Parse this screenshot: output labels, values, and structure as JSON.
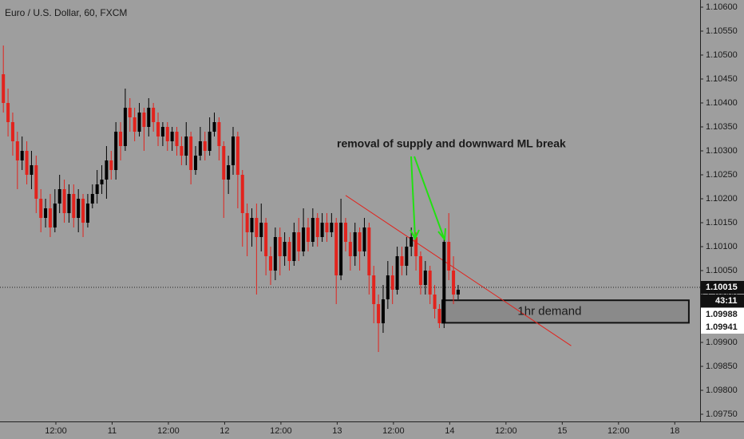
{
  "chart_data": {
    "type": "candlestick",
    "title": "Euro / U.S. Dollar, 60, FXCM",
    "annotation": "removal of supply and downward ML break",
    "up_color": "#000000",
    "down_color": "#e2231d",
    "xlim": [
      -0.715,
      148.6
    ],
    "ylim": [
      1.09735,
      1.10615
    ],
    "xticks": [
      {
        "value": 11.2,
        "label": "12:00"
      },
      {
        "value": 23.2,
        "label": "11"
      },
      {
        "value": 35.2,
        "label": "12:00"
      },
      {
        "value": 47.2,
        "label": "12"
      },
      {
        "value": 59.2,
        "label": "12:00"
      },
      {
        "value": 71.2,
        "label": "13"
      },
      {
        "value": 83.2,
        "label": "12:00"
      },
      {
        "value": 95.2,
        "label": "14"
      },
      {
        "value": 107.2,
        "label": "12:00"
      },
      {
        "value": 119.2,
        "label": "15"
      },
      {
        "value": 131.2,
        "label": "12:00"
      },
      {
        "value": 143.2,
        "label": "18"
      }
    ],
    "yticks": [
      {
        "value": 1.106,
        "label": "1.10600"
      },
      {
        "value": 1.1055,
        "label": "1.10550"
      },
      {
        "value": 1.105,
        "label": "1.10500"
      },
      {
        "value": 1.1045,
        "label": "1.10450"
      },
      {
        "value": 1.104,
        "label": "1.10400"
      },
      {
        "value": 1.1035,
        "label": "1.10350"
      },
      {
        "value": 1.103,
        "label": "1.10300"
      },
      {
        "value": 1.1025,
        "label": "1.10250"
      },
      {
        "value": 1.102,
        "label": "1.10200"
      },
      {
        "value": 1.1015,
        "label": "1.10150"
      },
      {
        "value": 1.101,
        "label": "1.10100"
      },
      {
        "value": 1.1005,
        "label": "1.10050"
      },
      {
        "value": 1.1,
        "label": "1.10000"
      },
      {
        "value": 1.0995,
        "label": "1.09950"
      },
      {
        "value": 1.099,
        "label": "1.09900"
      },
      {
        "value": 1.0985,
        "label": "1.09850"
      },
      {
        "value": 1.098,
        "label": "1.09800"
      },
      {
        "value": 1.0975,
        "label": "1.09750"
      }
    ],
    "candles": {
      "open": [
        1.1046,
        1.104,
        1.1036,
        1.1032,
        1.1028,
        1.103,
        1.1025,
        1.1027,
        1.102,
        1.1016,
        1.1018,
        1.1014,
        1.1019,
        1.1022,
        1.1017,
        1.1021,
        1.1016,
        1.102,
        1.1015,
        1.1019,
        1.1021,
        1.1023,
        1.1024,
        1.1028,
        1.1026,
        1.1034,
        1.1031,
        1.1039,
        1.1037,
        1.1034,
        1.1038,
        1.1035,
        1.1039,
        1.1036,
        1.1033,
        1.1035,
        1.1032,
        1.1034,
        1.1031,
        1.1029,
        1.1033,
        1.1026,
        1.1029,
        1.1032,
        1.103,
        1.1034,
        1.1036,
        1.1031,
        1.1024,
        1.1027,
        1.1033,
        1.1025,
        1.1017,
        1.1013,
        1.1016,
        1.1012,
        1.1015,
        1.1008,
        1.1005,
        1.1012,
        1.1008,
        1.1011,
        1.1007,
        1.1013,
        1.1009,
        1.1014,
        1.1011,
        1.1016,
        1.1012,
        1.1015,
        1.1013,
        1.1015,
        1.1004,
        1.1015,
        1.1011,
        1.1008,
        1.1013,
        1.1009,
        1.1014,
        1.1004,
        1.0998,
        1.0994,
        1.0999,
        1.1004,
        1.1001,
        1.1008,
        1.1006,
        1.101,
        1.1012,
        1.1008,
        1.1002,
        1.1005,
        1.1,
        1.0997,
        1.0994,
        1.1011,
        1.1005,
        1.1
      ],
      "close": [
        1.104,
        1.1036,
        1.1032,
        1.1028,
        1.103,
        1.1025,
        1.1027,
        1.102,
        1.1016,
        1.1018,
        1.1014,
        1.1019,
        1.1022,
        1.1017,
        1.1021,
        1.1016,
        1.102,
        1.1015,
        1.1019,
        1.1021,
        1.1023,
        1.1024,
        1.1028,
        1.1026,
        1.1034,
        1.1031,
        1.1039,
        1.1037,
        1.1034,
        1.1038,
        1.1035,
        1.1039,
        1.1036,
        1.1033,
        1.1035,
        1.1032,
        1.1034,
        1.1031,
        1.1029,
        1.1033,
        1.1026,
        1.1029,
        1.1032,
        1.103,
        1.1034,
        1.1036,
        1.1031,
        1.1024,
        1.1027,
        1.1033,
        1.1025,
        1.1017,
        1.1013,
        1.1016,
        1.1012,
        1.1015,
        1.1008,
        1.1005,
        1.1012,
        1.1008,
        1.1011,
        1.1007,
        1.1013,
        1.1009,
        1.1014,
        1.1011,
        1.1016,
        1.1012,
        1.1015,
        1.1013,
        1.1015,
        1.1004,
        1.1015,
        1.1011,
        1.1008,
        1.1013,
        1.1009,
        1.1014,
        1.1004,
        1.0998,
        1.0994,
        1.0999,
        1.1004,
        1.1001,
        1.1008,
        1.1006,
        1.101,
        1.1012,
        1.1008,
        1.1002,
        1.1005,
        1.1,
        1.0997,
        1.0994,
        1.1011,
        1.1005,
        1.1,
        1.1001
      ],
      "high": [
        1.1052,
        1.1043,
        1.1038,
        1.1034,
        1.1033,
        1.1032,
        1.103,
        1.1029,
        1.1022,
        1.102,
        1.1021,
        1.1022,
        1.1025,
        1.1024,
        1.1023,
        1.1023,
        1.1022,
        1.1021,
        1.1021,
        1.1023,
        1.1026,
        1.1027,
        1.1031,
        1.103,
        1.1036,
        1.1036,
        1.1043,
        1.1041,
        1.1039,
        1.104,
        1.1039,
        1.1041,
        1.104,
        1.1038,
        1.1036,
        1.1036,
        1.1035,
        1.1035,
        1.1033,
        1.1036,
        1.1034,
        1.1031,
        1.1035,
        1.1034,
        1.1037,
        1.1038,
        1.1037,
        1.1032,
        1.1029,
        1.1035,
        1.1034,
        1.1026,
        1.1019,
        1.1018,
        1.1019,
        1.1019,
        1.1016,
        1.101,
        1.1014,
        1.1014,
        1.1013,
        1.1012,
        1.1015,
        1.1016,
        1.1018,
        1.1016,
        1.1018,
        1.1017,
        1.1017,
        1.1017,
        1.1017,
        1.1016,
        1.102,
        1.1016,
        1.1013,
        1.1015,
        1.1014,
        1.1016,
        1.1015,
        1.1006,
        1.1,
        1.1002,
        1.1007,
        1.1006,
        1.101,
        1.101,
        1.1012,
        1.1014,
        1.1013,
        1.1009,
        1.1007,
        1.1006,
        1.1002,
        1.0998,
        1.1012,
        1.1017,
        1.1008,
        1.1002
      ],
      "low": [
        1.1038,
        1.1033,
        1.1029,
        1.1022,
        1.1026,
        1.1023,
        1.1022,
        1.1017,
        1.1013,
        1.1014,
        1.1012,
        1.1013,
        1.1017,
        1.1015,
        1.1015,
        1.1014,
        1.1013,
        1.1012,
        1.1014,
        1.1018,
        1.1019,
        1.1021,
        1.102,
        1.1024,
        1.1024,
        1.1028,
        1.103,
        1.1034,
        1.1032,
        1.1033,
        1.103,
        1.1033,
        1.1034,
        1.1031,
        1.1031,
        1.103,
        1.103,
        1.1029,
        1.1027,
        1.1027,
        1.1023,
        1.1025,
        1.1028,
        1.1028,
        1.1029,
        1.1033,
        1.1028,
        1.1016,
        1.1021,
        1.1025,
        1.1018,
        1.101,
        1.1008,
        1.101,
        1.1,
        1.1009,
        1.1004,
        1.1002,
        1.1003,
        1.1004,
        1.1006,
        1.1005,
        1.1006,
        1.1007,
        1.1008,
        1.1009,
        1.101,
        1.101,
        1.1011,
        1.1011,
        1.1012,
        1.0998,
        1.1003,
        1.1009,
        1.1005,
        1.1006,
        1.1005,
        1.1008,
        1.1,
        1.0994,
        1.0988,
        1.0992,
        1.0997,
        1.0998,
        1.1,
        1.1004,
        1.1004,
        1.1008,
        1.1005,
        1.1,
        1.1,
        1.0998,
        1.0995,
        1.0993,
        1.0993,
        1.1003,
        1.0998,
        1.0999
      ]
    },
    "trendline": {
      "x": [
        73.0,
        121.1
      ],
      "y": [
        1.10207,
        1.09893
      ],
      "color": "#e2231d"
    },
    "demand_zone": {
      "label": "1hr demand",
      "x": [
        93.6,
        146.2
      ],
      "y": [
        1.09941,
        1.09988
      ],
      "top_label": "1.09988",
      "bottom_label": "1.09941"
    },
    "last_price": {
      "value": 1.10015,
      "label": "1.10015",
      "countdown": "43:11"
    }
  }
}
